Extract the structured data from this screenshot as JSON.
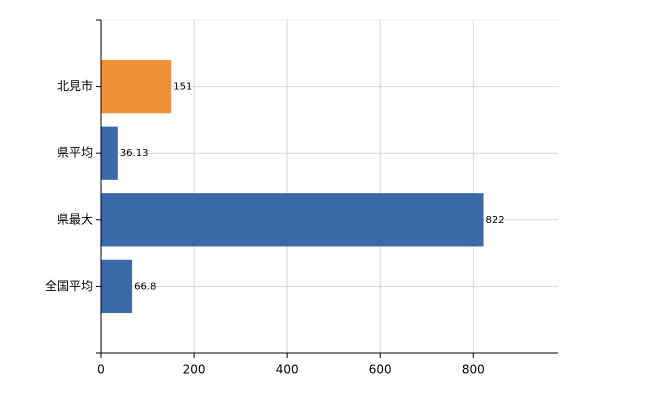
{
  "chart_data": {
    "type": "hbar",
    "categories": [
      "北見市",
      "県平均",
      "県最大",
      "全国平均"
    ],
    "values": [
      151,
      36.13,
      822,
      66.8
    ],
    "colors": [
      "#f0913a",
      "#3a6aaa",
      "#3a6aaa",
      "#3a6aaa"
    ],
    "xlim": [
      0,
      982
    ],
    "xticks": [
      0,
      200,
      400,
      600,
      800
    ],
    "grid": true
  }
}
